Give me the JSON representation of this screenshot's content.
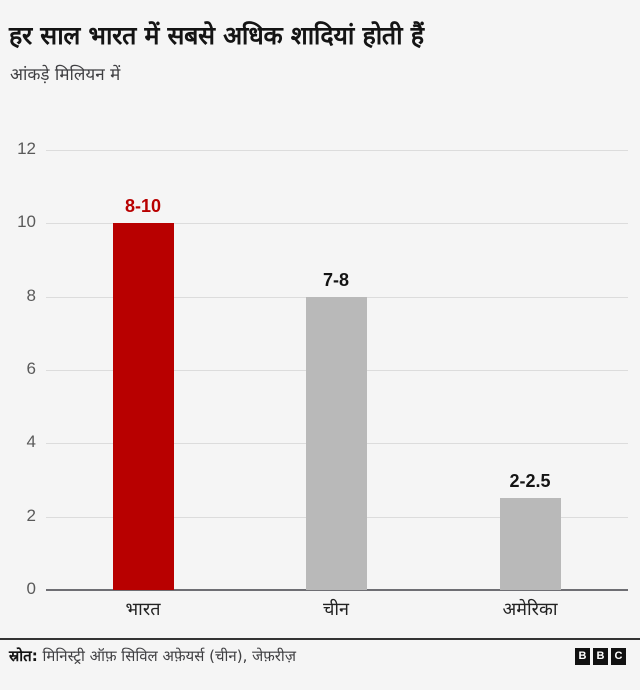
{
  "header": {
    "title": "हर साल भारत में सबसे अधिक शादियां होती हैं",
    "subtitle": "आंकड़े मिलियन में"
  },
  "footer": {
    "source_label": "स्रोत:",
    "source_text": "मिनिस्ट्री ऑफ़ सिविल अफ़ेयर्स (चीन), जेफ़रीज़",
    "logo_letters": [
      "B",
      "B",
      "C"
    ]
  },
  "colors": {
    "highlight": "#b80000",
    "default_bar": "#b9b9b9",
    "background": "#f5f5f5"
  },
  "chart_data": {
    "type": "bar",
    "title": "हर साल भारत में सबसे अधिक शादियां होती हैं",
    "subtitle": "आंकड़े मिलियन में",
    "categories": [
      "भारत",
      "चीन",
      "अमेरिका"
    ],
    "values": [
      10,
      8,
      2.5
    ],
    "value_labels": [
      "8-10",
      "7-8",
      "2-2.5"
    ],
    "ranges": [
      [
        8,
        10
      ],
      [
        7,
        8
      ],
      [
        2,
        2.5
      ]
    ],
    "bar_colors": [
      "#b80000",
      "#b9b9b9",
      "#b9b9b9"
    ],
    "xlabel": "",
    "ylabel": "",
    "ylim": [
      0,
      12
    ],
    "yticks": [
      0,
      2,
      4,
      6,
      8,
      10,
      12
    ],
    "grid": true,
    "legend": null,
    "source": "स्रोत: मिनिस्ट्री ऑफ़ सिविल अफ़ेयर्स (चीन), जेफ़रीज़"
  }
}
